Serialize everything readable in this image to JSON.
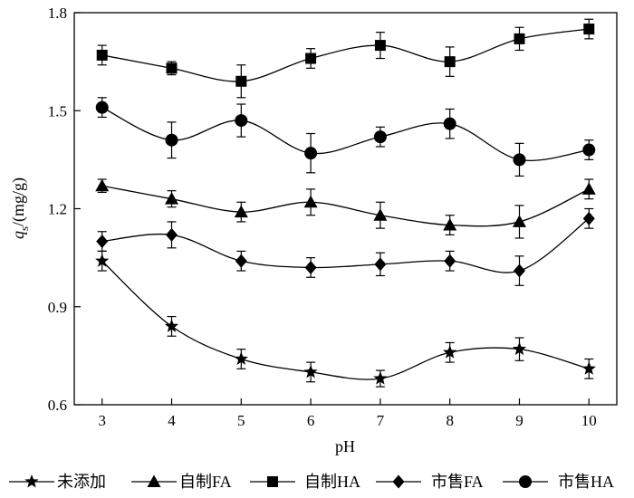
{
  "chart_data": {
    "type": "line",
    "title": "",
    "xlabel": "pH",
    "ylabel": {
      "symbol": "q",
      "subscript": "s",
      "unit": "/(mg/g)"
    },
    "x": [
      3,
      4,
      5,
      6,
      7,
      8,
      9,
      10
    ],
    "xlim": [
      2.6,
      10.4
    ],
    "ylim": [
      0.6,
      1.8
    ],
    "xticks": [
      "3",
      "4",
      "5",
      "6",
      "7",
      "8",
      "9",
      "10"
    ],
    "yticks": [
      "0.6",
      "0.9",
      "1.2",
      "1.5",
      "1.8"
    ],
    "grid": false,
    "legend_position": "bottom",
    "series": [
      {
        "name": "未添加",
        "marker": "star",
        "values": [
          1.04,
          0.84,
          0.74,
          0.7,
          0.68,
          0.76,
          0.77,
          0.71
        ],
        "errors": [
          0.03,
          0.03,
          0.03,
          0.03,
          0.025,
          0.03,
          0.035,
          0.03
        ]
      },
      {
        "name": "自制FA",
        "marker": "triangle",
        "values": [
          1.27,
          1.23,
          1.19,
          1.22,
          1.18,
          1.15,
          1.16,
          1.26
        ],
        "errors": [
          0.02,
          0.025,
          0.03,
          0.04,
          0.04,
          0.03,
          0.05,
          0.03
        ]
      },
      {
        "name": "自制HA",
        "marker": "square",
        "values": [
          1.67,
          1.63,
          1.59,
          1.66,
          1.7,
          1.65,
          1.72,
          1.75
        ],
        "errors": [
          0.03,
          0.02,
          0.05,
          0.03,
          0.04,
          0.045,
          0.035,
          0.03
        ]
      },
      {
        "name": "市售FA",
        "marker": "diamond",
        "values": [
          1.1,
          1.12,
          1.04,
          1.02,
          1.03,
          1.04,
          1.01,
          1.17
        ],
        "errors": [
          0.03,
          0.04,
          0.03,
          0.03,
          0.035,
          0.03,
          0.045,
          0.03
        ]
      },
      {
        "name": "市售HA",
        "marker": "circle",
        "values": [
          1.51,
          1.41,
          1.47,
          1.37,
          1.42,
          1.46,
          1.35,
          1.38
        ],
        "errors": [
          0.03,
          0.055,
          0.05,
          0.06,
          0.03,
          0.045,
          0.05,
          0.03
        ]
      }
    ]
  }
}
